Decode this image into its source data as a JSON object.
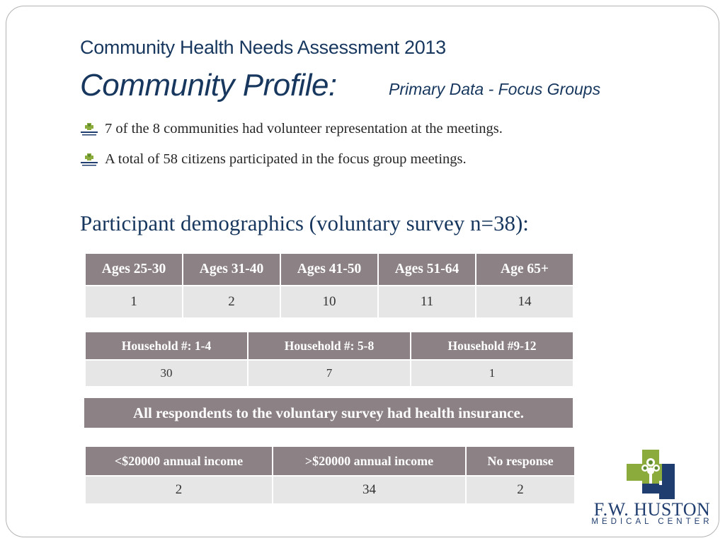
{
  "header": {
    "title_line1": "Community Health Needs Assessment 2013",
    "title_line2": "Community Profile:",
    "title_line2_sub": "Primary Data - Focus Groups"
  },
  "bullets": [
    "7 of the 8 communities had volunteer representation at the meetings.",
    "A total of 58 citizens participated in the focus group meetings."
  ],
  "subheading": "Participant demographics (voluntary survey n=38):",
  "age_table": {
    "headers": [
      "Ages 25-30",
      "Ages 31-40",
      "Ages 41-50",
      "Ages 51-64",
      "Age 65+"
    ],
    "values": [
      "1",
      "2",
      "10",
      "11",
      "14"
    ]
  },
  "household_table": {
    "headers": [
      "Household #: 1-4",
      "Household #: 5-8",
      "Household #9-12"
    ],
    "values": [
      "30",
      "7",
      "1"
    ]
  },
  "insurance_banner": "All respondents to the voluntary survey had health insurance.",
  "income_table": {
    "headers": [
      "<$20000 annual income",
      ">$20000 annual income",
      "No response"
    ],
    "values": [
      "2",
      "34",
      "2"
    ]
  },
  "logo": {
    "name": "F.W. HUSTON",
    "subtitle": "MEDICAL CENTER"
  },
  "colors": {
    "title": "#17375e",
    "header_fill": "#8c8285",
    "cell_fill": "#e6e6e6",
    "logo_green": "#8bab3c",
    "logo_blue": "#1f3d6e"
  }
}
